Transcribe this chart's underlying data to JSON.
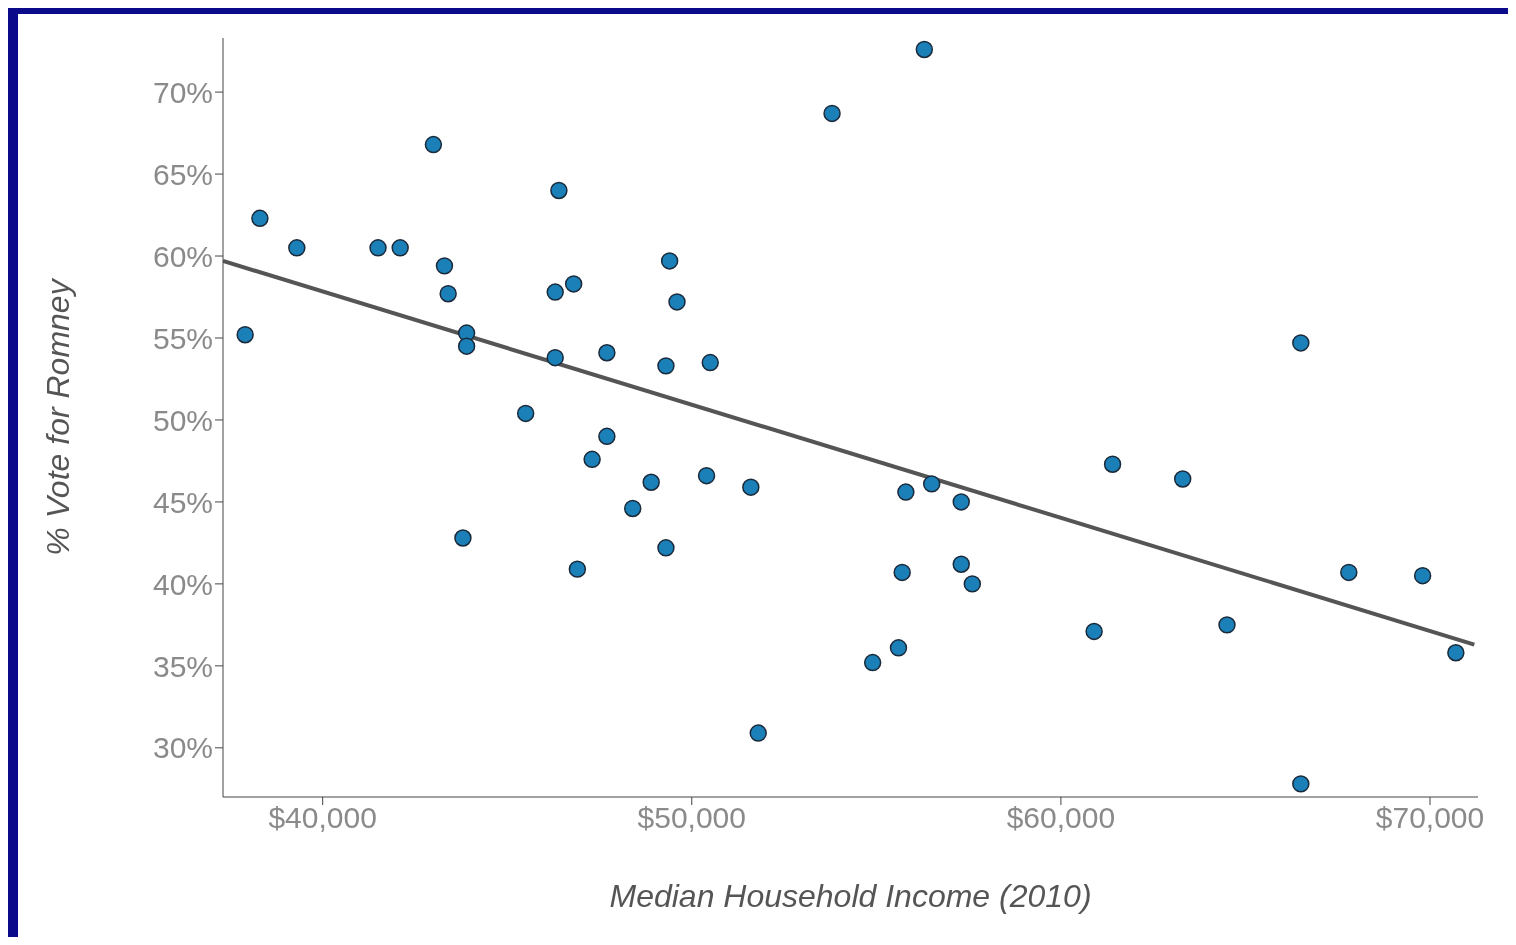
{
  "chart_data": {
    "type": "scatter",
    "xlabel": "Median Household Income (2010)",
    "ylabel": "% Vote for Romney",
    "xlim": [
      37300,
      71300
    ],
    "ylim": [
      27,
      73.3
    ],
    "xticks": [
      {
        "value": 40000,
        "label": "$40,000"
      },
      {
        "value": 50000,
        "label": "$50,000"
      },
      {
        "value": 60000,
        "label": "$60,000"
      },
      {
        "value": 70000,
        "label": "$70,000"
      }
    ],
    "yticks": [
      {
        "value": 30,
        "label": "30%"
      },
      {
        "value": 35,
        "label": "35%"
      },
      {
        "value": 40,
        "label": "40%"
      },
      {
        "value": 45,
        "label": "45%"
      },
      {
        "value": 50,
        "label": "50%"
      },
      {
        "value": 55,
        "label": "55%"
      },
      {
        "value": 60,
        "label": "60%"
      },
      {
        "value": 65,
        "label": "65%"
      },
      {
        "value": 70,
        "label": "70%"
      }
    ],
    "grid": false,
    "legend": false,
    "marker": "circle",
    "series": [
      {
        "type": "scatter",
        "color": "#1b7fb8",
        "x": [
          37900,
          38300,
          39300,
          41500,
          42100,
          43000,
          43300,
          43400,
          43900,
          43900,
          43800,
          45500,
          46300,
          46300,
          46400,
          46800,
          46900,
          47300,
          47700,
          47700,
          48400,
          48900,
          49300,
          49300,
          49400,
          49600,
          50400,
          50500,
          51600,
          51800,
          53800,
          54900,
          55600,
          55700,
          55800,
          56300,
          56500,
          57300,
          57300,
          57600,
          60900,
          61400,
          63300,
          64500,
          66500,
          66500,
          67800,
          69800,
          70700
        ],
        "values": [
          55.2,
          62.3,
          60.5,
          60.5,
          60.5,
          66.8,
          59.4,
          57.7,
          55.3,
          54.5,
          42.8,
          50.4,
          53.8,
          57.8,
          64.0,
          58.3,
          40.9,
          47.6,
          49.0,
          54.1,
          44.6,
          46.2,
          42.2,
          53.3,
          59.7,
          57.2,
          46.6,
          53.5,
          45.9,
          30.9,
          68.7,
          35.2,
          36.1,
          40.7,
          45.6,
          72.6,
          46.1,
          45.0,
          41.2,
          40.0,
          37.1,
          47.3,
          46.4,
          37.5,
          27.8,
          54.7,
          40.7,
          40.5,
          35.8
        ]
      },
      {
        "type": "line",
        "color": "#555555",
        "line_style": "solid",
        "marker": "none",
        "x": [
          37300,
          71200
        ],
        "values": [
          59.7,
          36.3
        ]
      }
    ]
  }
}
